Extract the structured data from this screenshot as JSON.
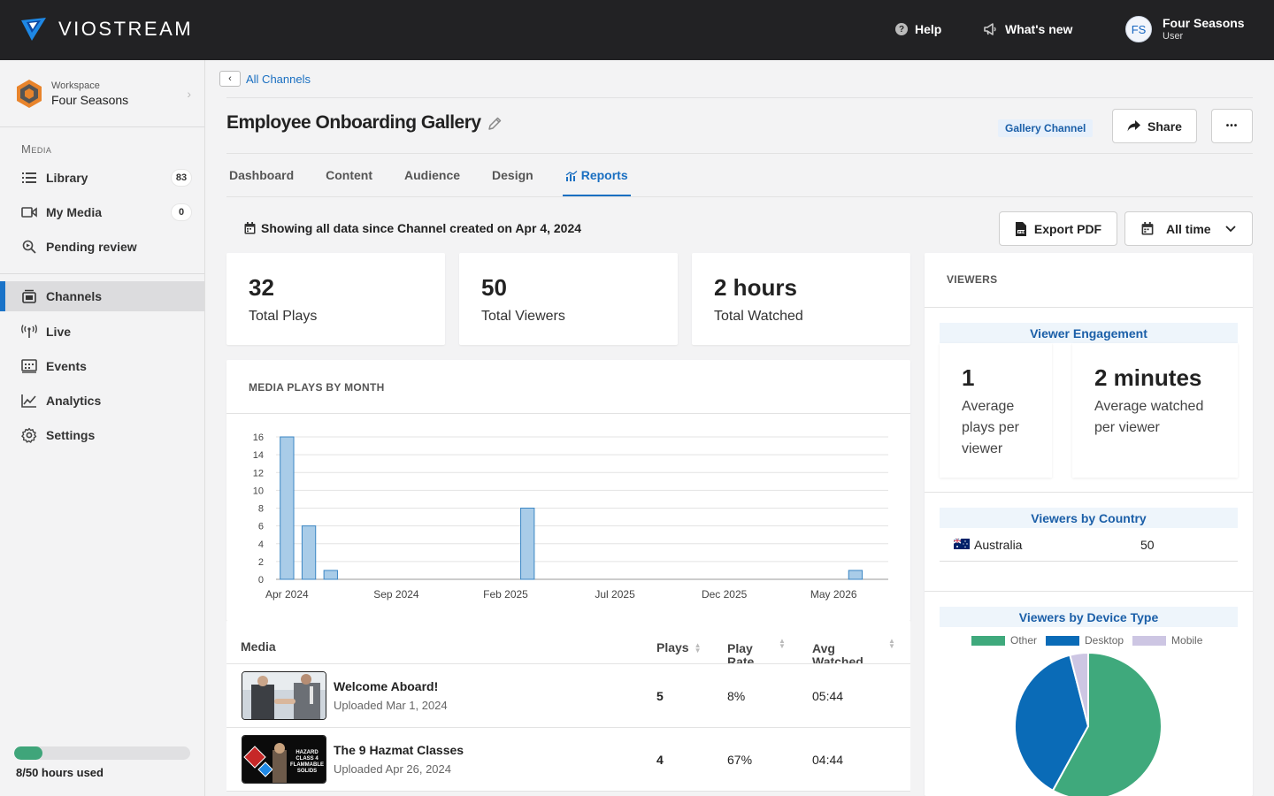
{
  "app": {
    "brand": "VIOSTREAM"
  },
  "topbar": {
    "help_label": "Help",
    "whats_new_label": "What's new",
    "user": {
      "initials": "FS",
      "name": "Four Seasons",
      "role": "User"
    }
  },
  "sidebar": {
    "workspace_label": "Workspace",
    "workspace_name": "Four Seasons",
    "section_media": "Media",
    "items": [
      {
        "label": "Library",
        "icon": "list-icon",
        "count": "83"
      },
      {
        "label": "My Media",
        "icon": "video-camera-icon",
        "count": "0"
      },
      {
        "label": "Pending review",
        "icon": "search-review-icon"
      },
      {
        "label": "Channels",
        "icon": "channels-icon",
        "active": true
      },
      {
        "label": "Live",
        "icon": "broadcast-icon"
      },
      {
        "label": "Events",
        "icon": "events-icon"
      },
      {
        "label": "Analytics",
        "icon": "chart-line-icon"
      },
      {
        "label": "Settings",
        "icon": "gear-icon"
      }
    ],
    "usage": {
      "text": "8/50 hours used",
      "fraction": 0.16,
      "color": "#3fa57a"
    }
  },
  "header": {
    "back_link": "All Channels",
    "title": "Employee Onboarding Gallery",
    "badge": "Gallery Channel",
    "share_label": "Share",
    "more_label": "•••"
  },
  "tabs": [
    {
      "label": "Dashboard"
    },
    {
      "label": "Content"
    },
    {
      "label": "Audience"
    },
    {
      "label": "Design"
    },
    {
      "label": "Reports",
      "active": true
    }
  ],
  "report": {
    "info": "Showing all data since Channel created on Apr 4, 2024",
    "export_label": "Export PDF",
    "range_label": "All time"
  },
  "stats": [
    {
      "value": "32",
      "label": "Total Plays"
    },
    {
      "value": "50",
      "label": "Total Viewers"
    },
    {
      "value": "2 hours",
      "label": "Total Watched"
    }
  ],
  "plays_chart": {
    "title": "MEDIA PLAYS BY MONTH"
  },
  "chart_data": [
    {
      "type": "bar",
      "title": "MEDIA PLAYS BY MONTH",
      "categories": [
        "Apr 2024",
        "May 2024",
        "Jun 2024",
        "Jul 2024",
        "Aug 2024",
        "Sep 2024",
        "Oct 2024",
        "Nov 2024",
        "Dec 2024",
        "Jan 2025",
        "Feb 2025",
        "Mar 2025",
        "Apr 2025",
        "May 2025",
        "Jun 2025",
        "Jul 2025",
        "Aug 2025",
        "Sep 2025",
        "Oct 2025",
        "Nov 2025",
        "Dec 2025",
        "Jan 2026",
        "Feb 2026",
        "Mar 2026",
        "Apr 2026",
        "May 2026",
        "Jun 2026",
        "Jul 2026"
      ],
      "values": [
        16,
        6,
        1,
        0,
        0,
        0,
        0,
        0,
        0,
        0,
        0,
        8,
        0,
        0,
        0,
        0,
        0,
        0,
        0,
        0,
        0,
        0,
        0,
        0,
        0,
        0,
        1,
        0
      ],
      "x_tick_labels": [
        "Apr 2024",
        "Sep 2024",
        "Feb 2025",
        "Jul 2025",
        "Dec 2025",
        "May 2026"
      ],
      "y_ticks": [
        0,
        2,
        4,
        6,
        8,
        10,
        12,
        14,
        16
      ],
      "ylim": [
        0,
        16
      ],
      "grid": true,
      "color": "#a9cce8",
      "stroke": "#3b86c4"
    },
    {
      "type": "pie",
      "title": "Viewers by Device Type",
      "labels": [
        "Other",
        "Desktop",
        "Mobile"
      ],
      "values": [
        58,
        38,
        4
      ],
      "colors": [
        "#3fa97c",
        "#0a6bb7",
        "#cdc6e3"
      ],
      "legend": "top"
    }
  ],
  "table": {
    "headers": {
      "media": "Media",
      "plays": "Plays",
      "play_rate": "Play\nRate",
      "avg_watched": "Avg\nWatched"
    },
    "rows": [
      {
        "title": "Welcome Aboard!",
        "uploaded": "Uploaded Mar 1, 2024",
        "plays": "5",
        "play_rate": "8%",
        "avg_watched": "05:44"
      },
      {
        "title": "The 9 Hazmat Classes",
        "uploaded": "Uploaded Apr 26, 2024",
        "plays": "4",
        "play_rate": "67%",
        "avg_watched": "04:44",
        "thumb_text": "HAZARD CLASS 4 FLAMMABLE SOLIDS"
      }
    ]
  },
  "viewers": {
    "title": "VIEWERS",
    "engagement_title": "Viewer Engagement",
    "avg_plays_value": "1",
    "avg_plays_label": "Average plays per viewer",
    "avg_watched_value": "2 minutes",
    "avg_watched_label": "Average watched per viewer",
    "country_title": "Viewers by Country",
    "countries": [
      {
        "name": "Australia",
        "count": "50",
        "flag": "australia-flag-icon"
      }
    ],
    "device_title": "Viewers by Device Type"
  }
}
